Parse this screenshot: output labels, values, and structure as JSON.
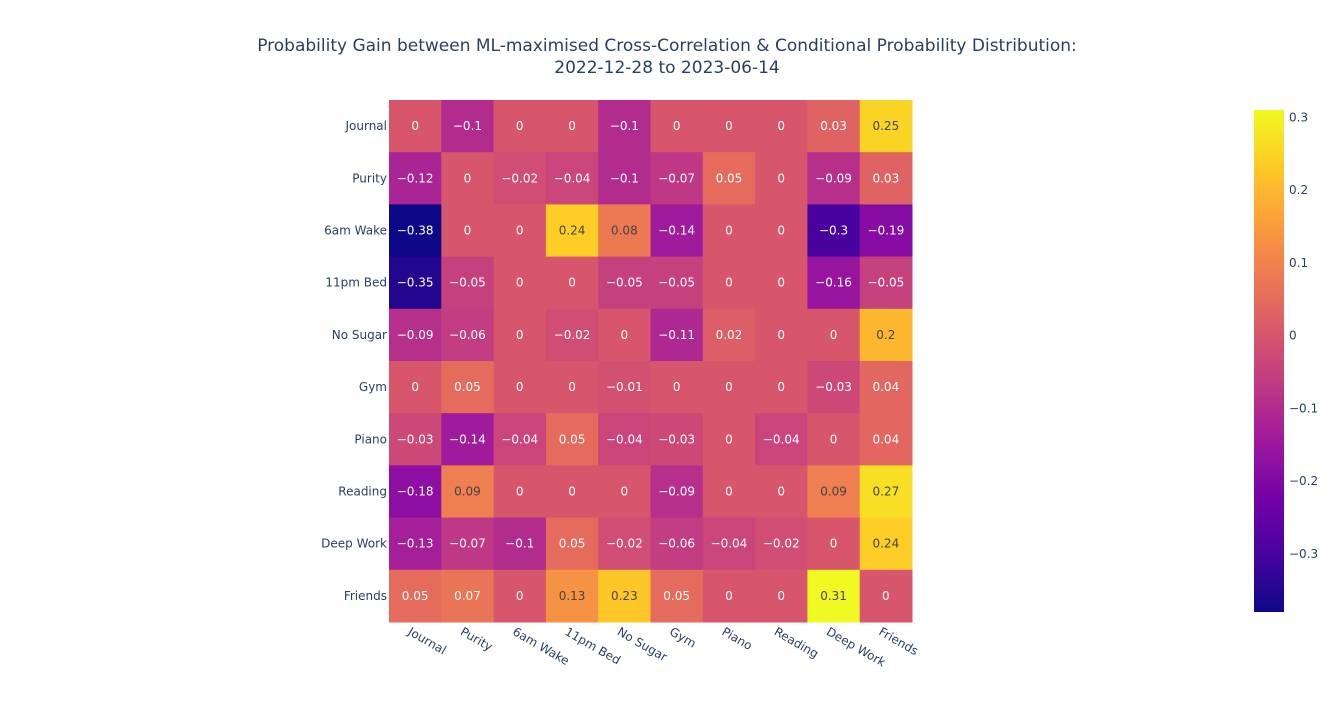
{
  "chart_data": {
    "type": "heatmap",
    "title_line1": "Probability Gain between ML-maximised Cross-Correlation & Conditional Probability Distribution:",
    "title_line2": "2022-12-28 to 2023-06-14",
    "x_categories": [
      "Journal",
      "Purity",
      "6am Wake",
      "11pm Bed",
      "No Sugar",
      "Gym",
      "Piano",
      "Reading",
      "Deep Work",
      "Friends"
    ],
    "y_categories": [
      "Journal",
      "Purity",
      "6am Wake",
      "11pm Bed",
      "No Sugar",
      "Gym",
      "Piano",
      "Reading",
      "Deep Work",
      "Friends"
    ],
    "z": [
      [
        0,
        -0.1,
        0,
        0,
        -0.1,
        0,
        0,
        0,
        0.03,
        0.25
      ],
      [
        -0.12,
        0,
        -0.02,
        -0.04,
        -0.1,
        -0.07,
        0.05,
        0,
        -0.09,
        0.03
      ],
      [
        -0.38,
        0,
        0,
        0.24,
        0.08,
        -0.14,
        0,
        0,
        -0.3,
        -0.19
      ],
      [
        -0.35,
        -0.05,
        0,
        0,
        -0.05,
        -0.05,
        0,
        0,
        -0.16,
        -0.05
      ],
      [
        -0.09,
        -0.06,
        0,
        -0.02,
        0,
        -0.11,
        0.02,
        0,
        0,
        0.2
      ],
      [
        0,
        0.05,
        0,
        0,
        -0.01,
        0,
        0,
        0,
        -0.03,
        0.04
      ],
      [
        -0.03,
        -0.14,
        -0.04,
        0.05,
        -0.04,
        -0.03,
        0,
        -0.04,
        0,
        0.04
      ],
      [
        -0.18,
        0.09,
        0,
        0,
        0,
        -0.09,
        0,
        0,
        0.09,
        0.27
      ],
      [
        -0.13,
        -0.07,
        -0.1,
        0.05,
        -0.02,
        -0.06,
        -0.04,
        -0.02,
        0,
        0.24
      ],
      [
        0.05,
        0.07,
        0,
        0.13,
        0.23,
        0.05,
        0,
        0,
        0.31,
        0
      ]
    ],
    "zrange": [
      -0.38,
      0.31
    ],
    "colorscale": "plasma",
    "colorbar_ticks": [
      "0.3",
      "0.2",
      "0.1",
      "0",
      "−0.1",
      "−0.2",
      "−0.3"
    ],
    "colorbar_tick_values": [
      0.3,
      0.2,
      0.1,
      0,
      -0.1,
      -0.2,
      -0.3
    ],
    "colors": {
      "plasma": [
        "#0d0887",
        "#46039f",
        "#7201a8",
        "#9c179e",
        "#bd3786",
        "#d8576b",
        "#ed7953",
        "#fb9f3a",
        "#fdca26",
        "#f0f921"
      ],
      "text": "#2a3f5f"
    }
  }
}
